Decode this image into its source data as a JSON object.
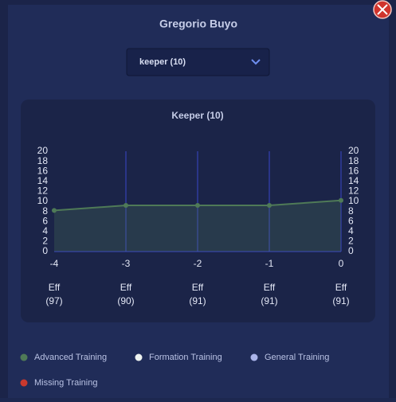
{
  "header": {
    "title": "Gregorio Buyo"
  },
  "dropdown": {
    "selected": "keeper (10)"
  },
  "chart_data": {
    "type": "line",
    "title": "Keeper (10)",
    "x": [
      -4,
      -3,
      -2,
      -1,
      0
    ],
    "series": [
      {
        "name": "Advanced Training",
        "color": "#4f7a57",
        "values": [
          8.2,
          9.2,
          9.2,
          9.2,
          10.2
        ]
      }
    ],
    "xlim": [
      -4,
      0
    ],
    "xticks": [
      -4,
      -3,
      -2,
      -1,
      0
    ],
    "ylim": [
      0,
      20
    ],
    "yticks": [
      0,
      2,
      4,
      6,
      8,
      10,
      12,
      14,
      16,
      18,
      20
    ],
    "y2lim": [
      0,
      20
    ],
    "y2ticks": [
      0,
      2,
      4,
      6,
      8,
      10,
      12,
      14,
      16,
      18,
      20
    ],
    "grid": "x",
    "grid_color": "#3a46c8",
    "eff_label": "Eff",
    "eff_values": [
      "(97)",
      "(90)",
      "(91)",
      "(91)",
      "(91)"
    ]
  },
  "legend": [
    {
      "name": "Advanced Training",
      "color": "#4f7a57"
    },
    {
      "name": "Formation Training",
      "color": "#eef3f0"
    },
    {
      "name": "General Training",
      "color": "#aab4ea"
    },
    {
      "name": "Missing Training",
      "color": "#c9392e"
    }
  ]
}
